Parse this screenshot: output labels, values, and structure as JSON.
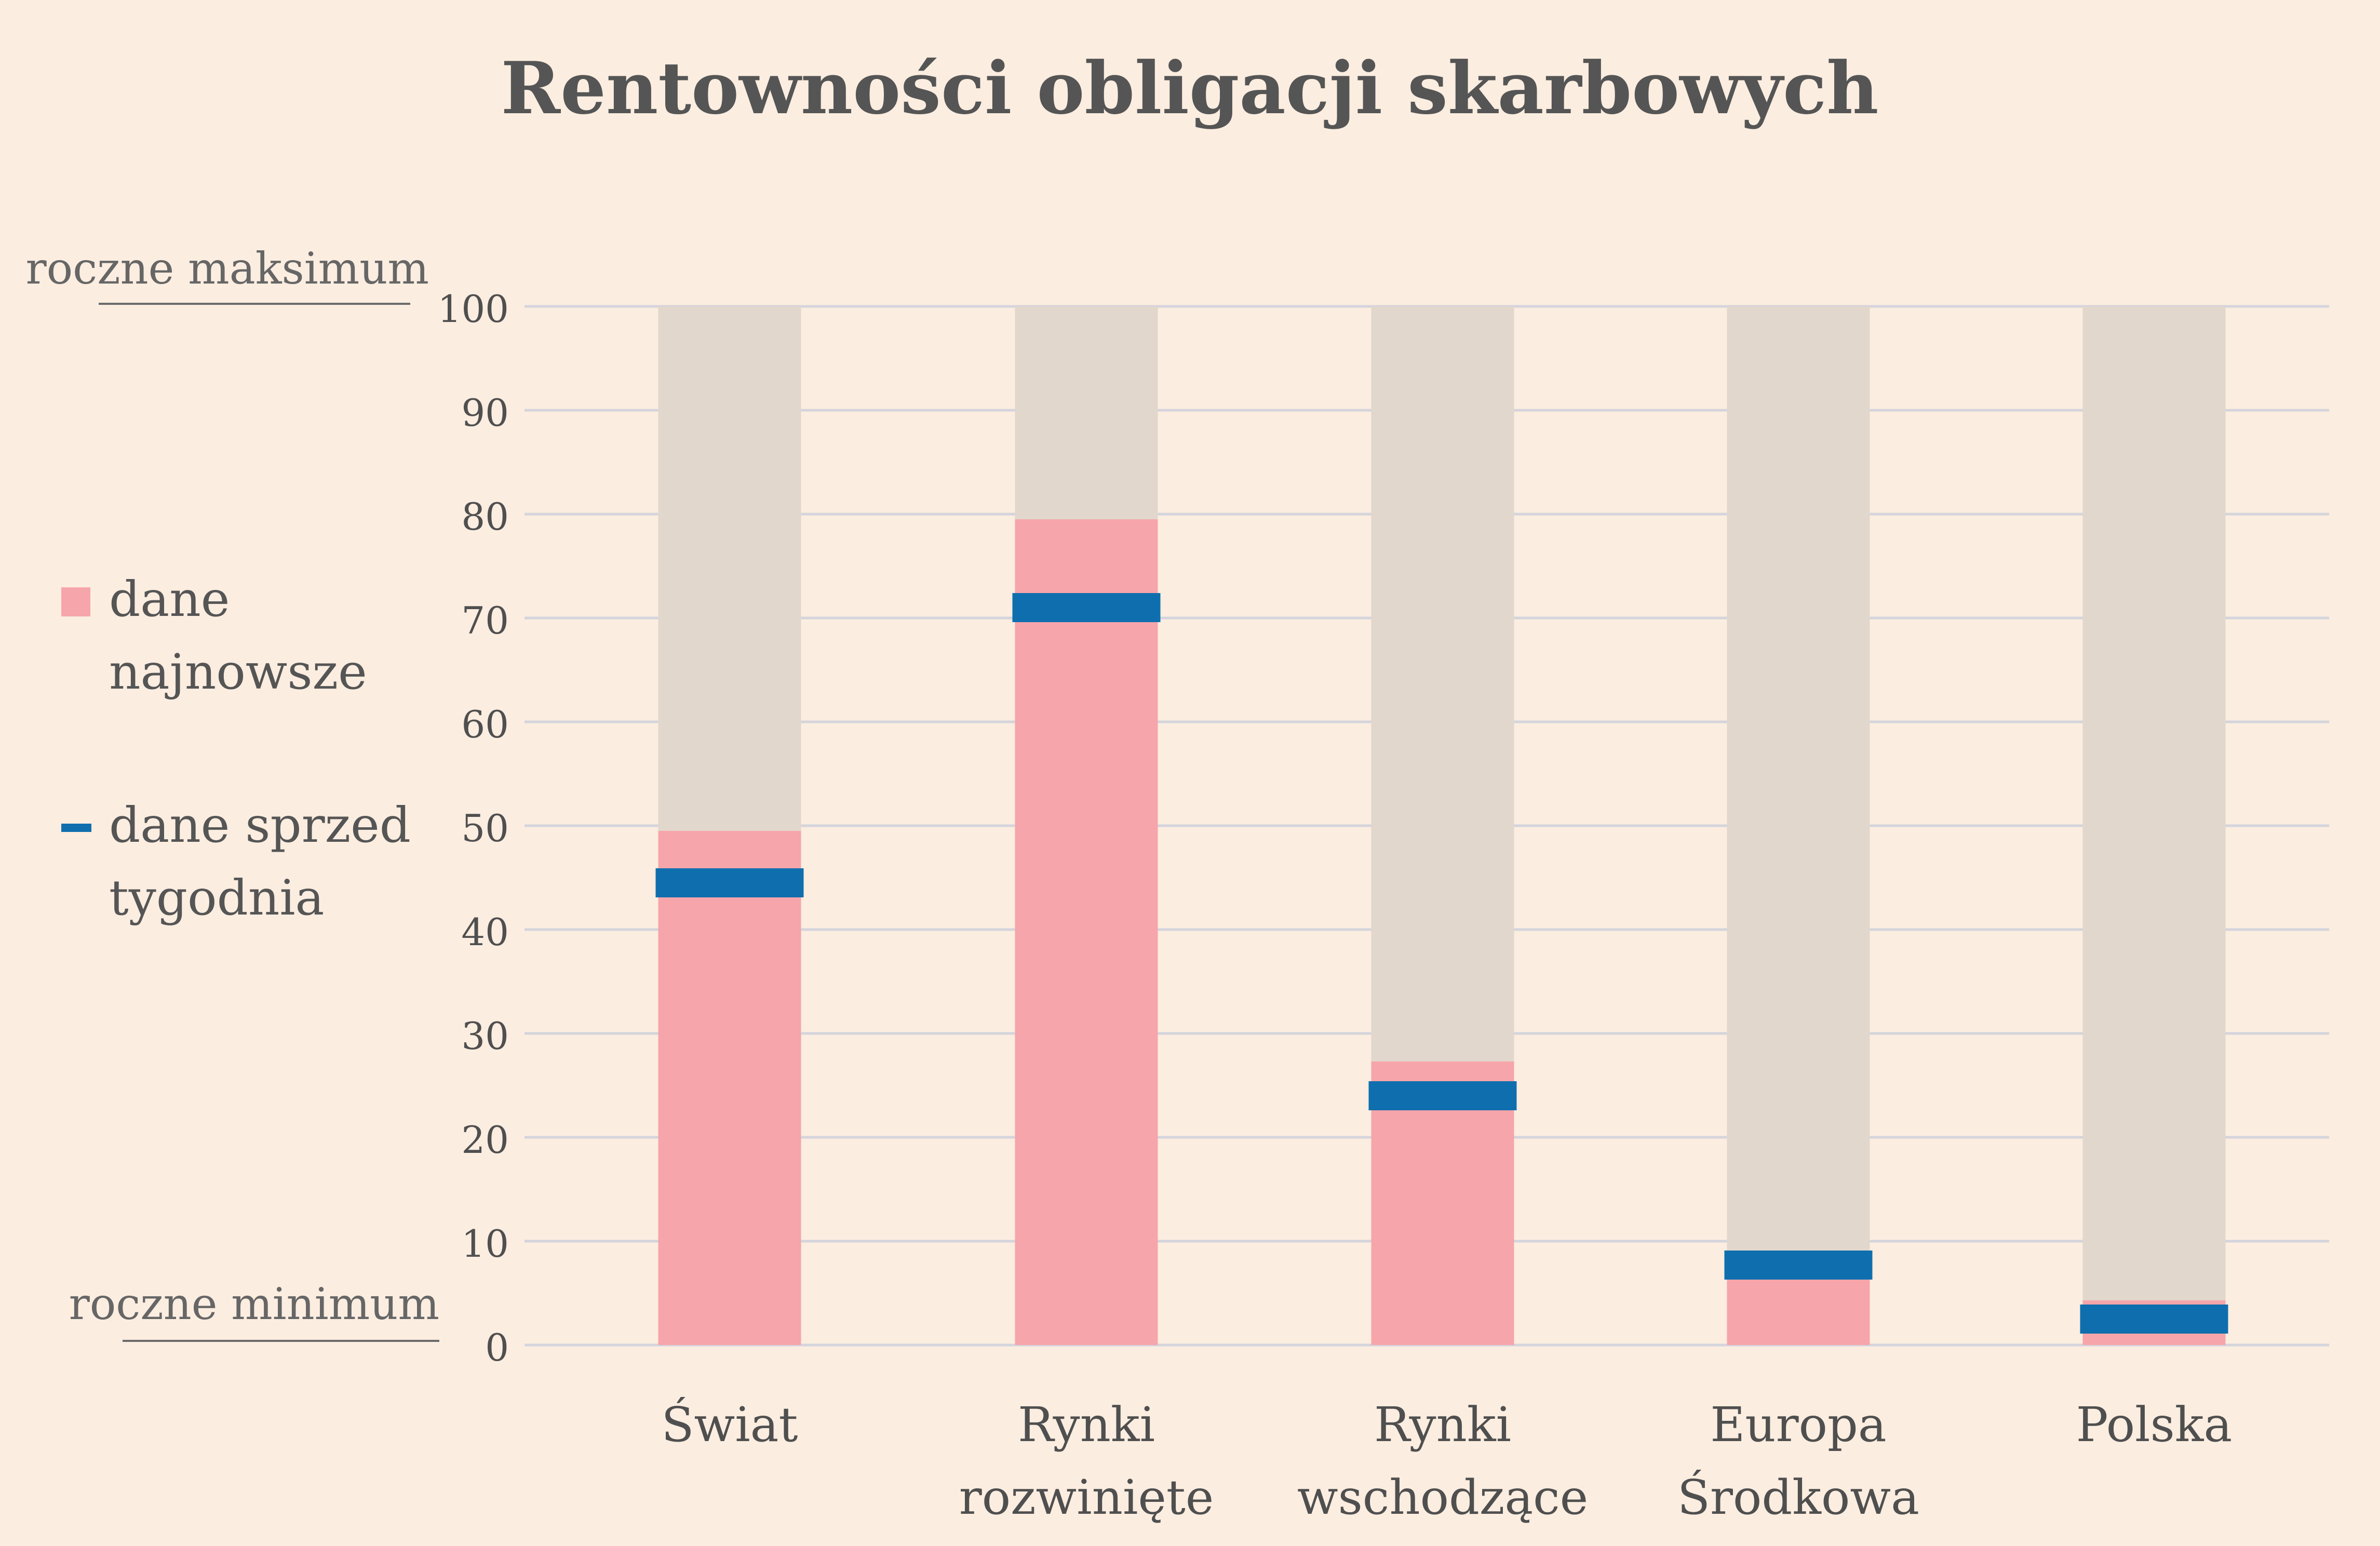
{
  "chart_data": {
    "type": "bar",
    "title": "Rentowności obligacji skarbowych",
    "categories": [
      [
        "Świat"
      ],
      [
        "Rynki",
        "rozwinięte"
      ],
      [
        "Rynki",
        "wschodzące"
      ],
      [
        "Europa",
        "Środkowa"
      ],
      [
        "Polska"
      ]
    ],
    "series": [
      {
        "name": "dane najnowsze",
        "values": [
          49.5,
          79.5,
          27.3,
          6.5,
          4.3
        ],
        "color": "#f6a5aa"
      },
      {
        "name": "dane sprzed tygodnia",
        "values": [
          44.5,
          71.0,
          24.0,
          7.7,
          2.5
        ],
        "color": "#0f6fae"
      }
    ],
    "range_background": {
      "values": [
        100,
        100,
        100,
        100,
        100
      ],
      "color": "#e2d7cc"
    },
    "yticks": [
      "0",
      "10",
      "20",
      "30",
      "40",
      "50",
      "60",
      "70",
      "80",
      "90",
      "100"
    ],
    "ylim": [
      0,
      100
    ],
    "grid": true,
    "legend": {
      "placement": "left",
      "items": [
        {
          "line1": "dane",
          "line2": "najnowsze",
          "shape": "square",
          "color": "#f6a5aa"
        },
        {
          "line1": "dane sprzed",
          "line2": "tygodnia",
          "shape": "line",
          "color": "#0f6fae"
        }
      ]
    },
    "top_label": "roczne maksimum",
    "bottom_label": "roczne minimum",
    "colors": {
      "background": "#fbede0",
      "grid": "#d4d4dc",
      "text": "#4f4f4f",
      "range": "#e2d7cc"
    }
  }
}
